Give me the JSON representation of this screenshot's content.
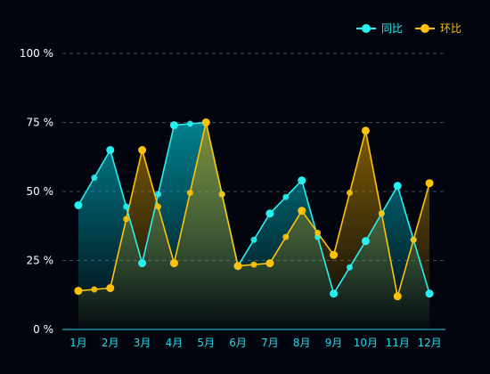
{
  "chart_data": {
    "type": "area",
    "title": "",
    "xlabel": "",
    "ylabel": "",
    "categories": [
      "1月",
      "2月",
      "3月",
      "4月",
      "5月",
      "6月",
      "7月",
      "8月",
      "9月",
      "10月",
      "11月",
      "12月"
    ],
    "ylim": [
      0,
      100
    ],
    "yticks": [
      0,
      25,
      50,
      75,
      100
    ],
    "ytick_suffix": " %",
    "grid": "horizontal dashed",
    "legend_position": "top-right",
    "series": [
      {
        "name": "同比",
        "color": "#28f0f0",
        "values": [
          45,
          65,
          24,
          74,
          75,
          23,
          42,
          54,
          13,
          32,
          52,
          13
        ]
      },
      {
        "name": "环比",
        "color": "#ffc20a",
        "values": [
          14,
          15,
          65,
          24,
          75,
          23,
          24,
          43,
          27,
          72,
          12,
          53
        ]
      }
    ],
    "colors": {
      "background": "#02050d",
      "axis": "#27d6e6",
      "grid": "#3b4656",
      "ytick_text": "#ffffff",
      "xtick_text": "#27d6e6"
    }
  }
}
